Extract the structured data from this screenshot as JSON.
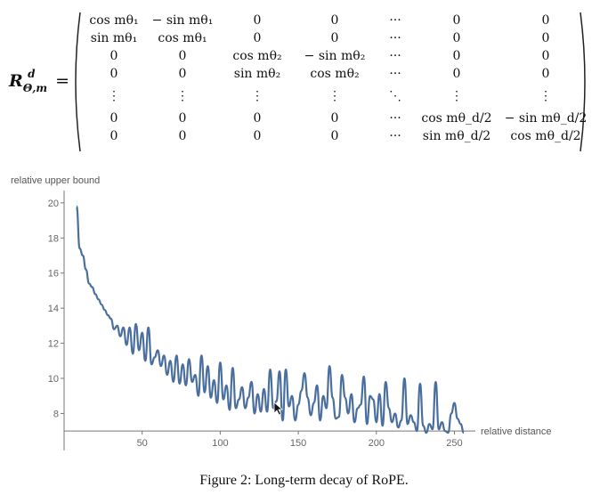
{
  "equation": {
    "lhs_symbol": "R",
    "lhs_sub": "Θ,m",
    "lhs_sup": "d",
    "equals": "=",
    "rows": [
      [
        "cos mθ₁",
        "− sin mθ₁",
        "0",
        "0",
        "···",
        "0",
        "0"
      ],
      [
        "sin mθ₁",
        "cos mθ₁",
        "0",
        "0",
        "···",
        "0",
        "0"
      ],
      [
        "0",
        "0",
        "cos mθ₂",
        "− sin mθ₂",
        "···",
        "0",
        "0"
      ],
      [
        "0",
        "0",
        "sin mθ₂",
        "cos mθ₂",
        "···",
        "0",
        "0"
      ],
      [
        "⋮",
        "⋮",
        "⋮",
        "⋮",
        "⋱",
        "⋮",
        "⋮"
      ],
      [
        "0",
        "0",
        "0",
        "0",
        "···",
        "cos mθ_d/2",
        "− sin mθ_d/2"
      ],
      [
        "0",
        "0",
        "0",
        "0",
        "···",
        "sin mθ_d/2",
        "cos mθ_d/2"
      ]
    ]
  },
  "chart_data": {
    "type": "line",
    "ylabel": "relative upper bound",
    "xlabel": "relative distance",
    "xlim": [
      0,
      260
    ],
    "ylim": [
      6.5,
      20.5
    ],
    "xticks": [
      50,
      100,
      150,
      200,
      250
    ],
    "yticks": [
      8,
      10,
      12,
      14,
      16,
      18,
      20
    ],
    "line_color": "#4a6f9f",
    "series": [
      {
        "x": [
          8,
          10,
          12,
          14,
          16,
          18,
          20,
          22,
          24,
          26,
          28,
          30,
          32,
          34,
          36,
          38,
          40,
          42,
          44,
          46,
          48,
          50,
          52,
          54,
          56,
          58,
          60,
          62,
          64,
          66,
          68,
          70,
          72,
          74,
          76,
          78,
          80,
          82,
          84,
          86,
          88,
          90,
          92,
          94,
          96,
          98,
          100,
          102,
          104,
          106,
          108,
          110,
          112,
          114,
          116,
          118,
          120,
          122,
          124,
          126,
          128,
          130,
          132,
          134,
          136,
          138,
          140,
          142,
          144,
          146,
          148,
          150,
          152,
          154,
          156,
          158,
          160,
          162,
          164,
          166,
          168,
          170,
          172,
          174,
          176,
          178,
          180,
          182,
          184,
          186,
          188,
          190,
          192,
          194,
          196,
          198,
          200,
          202,
          204,
          206,
          208,
          210,
          212,
          214,
          216,
          218,
          220,
          222,
          224,
          226,
          228,
          230,
          232,
          234,
          236,
          238,
          240,
          242,
          244,
          246,
          248,
          250,
          252,
          254,
          256
        ],
        "y": [
          19.8,
          17.4,
          17.0,
          16.2,
          15.4,
          15.2,
          14.8,
          14.5,
          14.2,
          13.9,
          13.6,
          13.4,
          12.8,
          13.0,
          12.4,
          12.9,
          11.9,
          12.9,
          11.4,
          13.1,
          11.6,
          12.6,
          11.0,
          12.9,
          10.8,
          11.2,
          11.6,
          10.7,
          11.3,
          10.2,
          11.0,
          9.8,
          11.3,
          9.7,
          10.8,
          9.6,
          11.1,
          9.8,
          10.2,
          9.0,
          11.3,
          9.2,
          10.7,
          8.9,
          9.9,
          8.6,
          10.9,
          8.8,
          9.6,
          8.2,
          10.6,
          8.3,
          8.8,
          9.5,
          8.3,
          8.9,
          9.8,
          8.0,
          9.1,
          8.1,
          9.4,
          8.1,
          10.5,
          8.3,
          8.7,
          10.4,
          7.6,
          10.5,
          8.4,
          9.0,
          7.6,
          8.5,
          9.3,
          10.3,
          8.9,
          7.9,
          8.6,
          9.6,
          7.6,
          9.0,
          8.3,
          10.7,
          8.9,
          7.7,
          7.8,
          10.2,
          8.9,
          8.0,
          9.1,
          7.5,
          8.3,
          8.5,
          10.1,
          7.4,
          9.0,
          8.8,
          7.5,
          9.1,
          7.3,
          9.8,
          8.3,
          7.5,
          8.0,
          7.2,
          7.6,
          10.0,
          7.4,
          7.9,
          7.5,
          7.0,
          9.7,
          7.3,
          6.9,
          7.4,
          7.1,
          9.8,
          7.1,
          7.5,
          7.0,
          6.9,
          8.0,
          8.6,
          7.7,
          7.4,
          6.9
        ]
      }
    ]
  },
  "caption": "Figure 2: Long-term decay of RoPE."
}
